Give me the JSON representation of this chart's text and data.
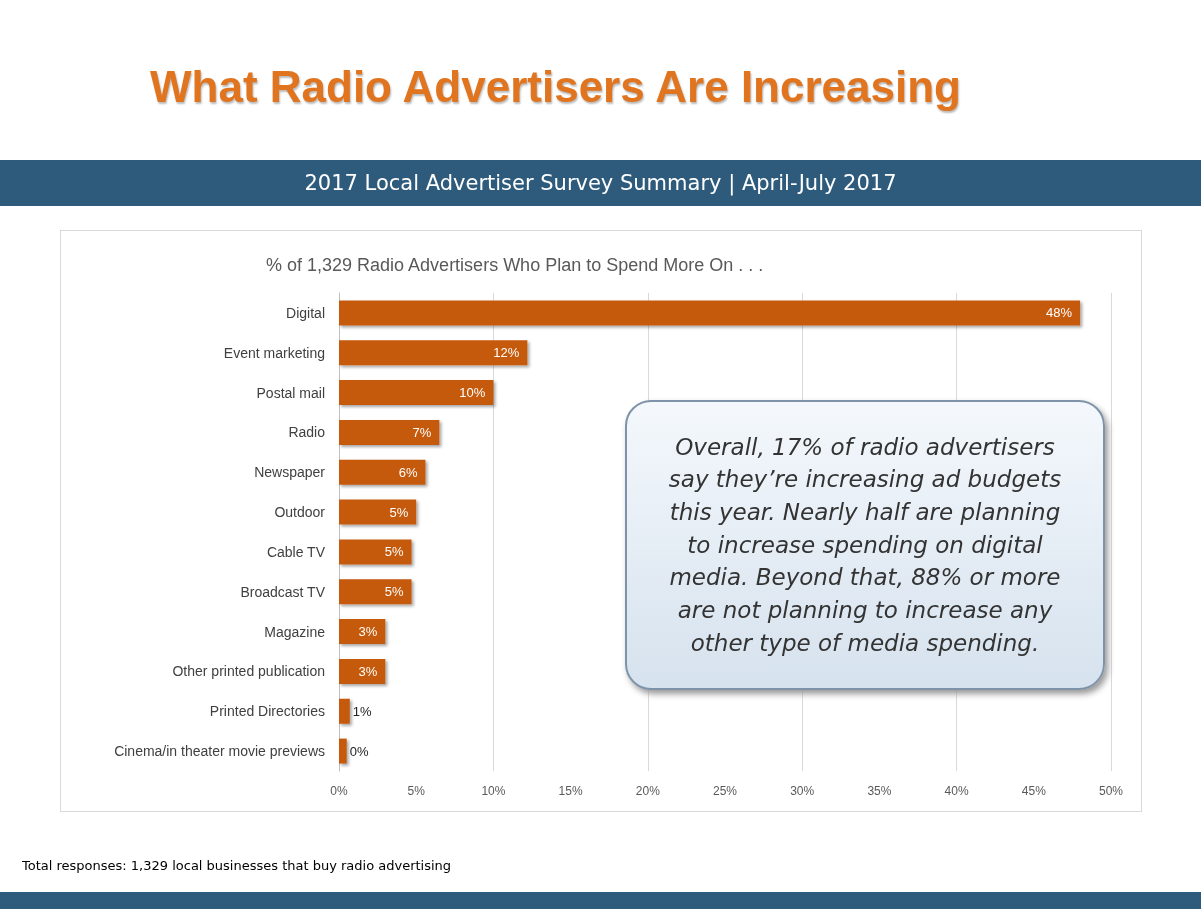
{
  "chart_data": {
    "type": "bar",
    "orientation": "horizontal",
    "title": "What Radio Advertisers Are Increasing",
    "subtitle": "2017 Local Advertiser Survey Summary | April-July 2017",
    "annotations": [
      "% of 1,329 Radio Advertisers Who Plan to Spend More On . . .",
      "Overall, 17% of radio advertisers say they’re increasing ad budgets this year. Nearly half are planning to increase spending on digital media.  Beyond that, 88% or more are not planning to increase any other type of media spending.",
      "Total responses: 1,329 local businesses that buy radio advertising"
    ],
    "categories": [
      "Digital",
      "Event marketing",
      "Postal mail",
      "Radio",
      "Newspaper",
      "Outdoor",
      "Cable TV",
      "Broadcast TV",
      "Magazine",
      "Other printed publication",
      "Printed Directories",
      "Cinema/in theater movie previews"
    ],
    "values": [
      48,
      12.2,
      10,
      6.5,
      5.6,
      5,
      4.7,
      4.7,
      3,
      3,
      0.7,
      0.5
    ],
    "value_labels": [
      "48%",
      "12%",
      "10%",
      "7%",
      "6%",
      "5%",
      "5%",
      "5%",
      "3%",
      "3%",
      "1%",
      "0%"
    ],
    "color": "#c55a11",
    "xlim": [
      0,
      50
    ],
    "xticks": [
      {
        "value": 0,
        "label": "0%"
      },
      {
        "value": 5,
        "label": "5%"
      },
      {
        "value": 10,
        "label": "10%"
      },
      {
        "value": 15,
        "label": "15%"
      },
      {
        "value": 20,
        "label": "20%"
      },
      {
        "value": 25,
        "label": "25%"
      },
      {
        "value": 30,
        "label": "30%"
      },
      {
        "value": 35,
        "label": "35%"
      },
      {
        "value": 40,
        "label": "40%"
      },
      {
        "value": 45,
        "label": "45%"
      },
      {
        "value": 50,
        "label": "50%"
      }
    ],
    "grid": "x"
  }
}
